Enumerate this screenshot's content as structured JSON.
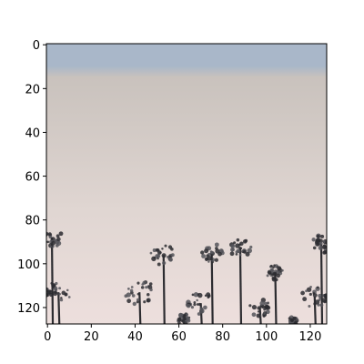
{
  "figure": {
    "kind": "image-plot",
    "image_subject": "silhouetted palm trees under a pale pastel sky",
    "colors": {
      "sky_top": "#a9b7c9",
      "sky_mid": "#c9c2bd",
      "sky_low": "#e0d6d2",
      "sky_bottom": "#eddfdd",
      "tree_dark": "#2c2c30",
      "tree_mid": "#55555a",
      "axis": "#000000",
      "background": "#ffffff"
    }
  },
  "axes": {
    "x_ticks": [
      0,
      20,
      40,
      60,
      80,
      100,
      120
    ],
    "y_ticks": [
      0,
      20,
      40,
      60,
      80,
      100,
      120
    ],
    "x_range": [
      -0.5,
      127.5
    ],
    "y_range": [
      127.5,
      -0.5
    ],
    "y_inverted": true,
    "grid": false
  }
}
